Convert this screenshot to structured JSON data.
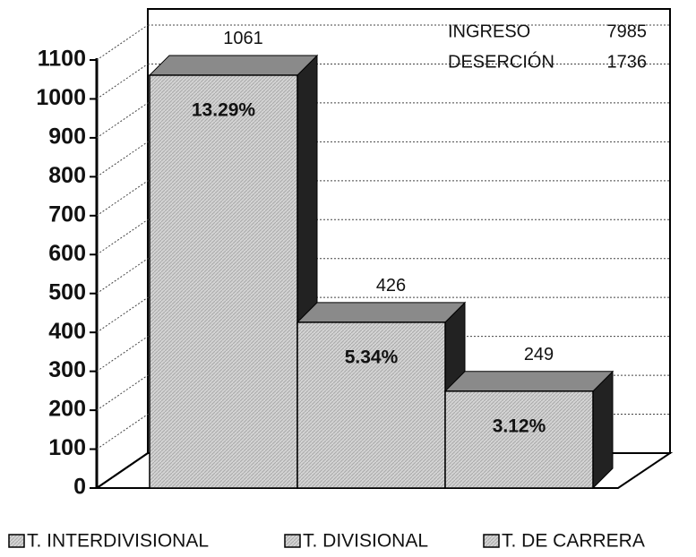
{
  "chart_data": {
    "type": "bar3d",
    "categories": [
      "T. INTERDIVISIONAL",
      "T. DIVISIONAL",
      "T. DE CARRERA"
    ],
    "values": [
      1061,
      426,
      249
    ],
    "percent_labels": [
      "13.29%",
      "5.34%",
      "3.12%"
    ],
    "annotations": [
      {
        "label": "INGRESO",
        "value": 7985
      },
      {
        "label": "DESERCIÓN",
        "value": 1736
      }
    ],
    "color": "#cfcfcf",
    "top_color": "#8a8a8a",
    "side_color": "#222222",
    "ylim": [
      0,
      1100
    ],
    "yticks": [
      0,
      100,
      200,
      300,
      400,
      500,
      600,
      700,
      800,
      900,
      1000,
      1100
    ],
    "grid": true,
    "legend": "bottom"
  }
}
